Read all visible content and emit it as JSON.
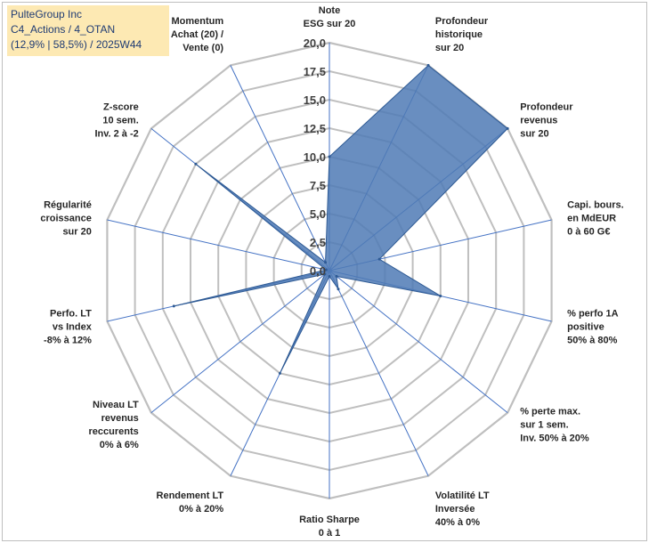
{
  "title_box": {
    "line1": "PulteGroup Inc",
    "line2": "C4_Actions / 4_OTAN",
    "line3": "(12,9% | 58,5%) / 2025W44"
  },
  "chart_data": {
    "type": "radar",
    "title": "PulteGroup Inc",
    "rmin": 0,
    "rmax": 20,
    "ticks": [
      "0,0",
      "2,5",
      "5,0",
      "7,5",
      "10,0",
      "12,5",
      "15,0",
      "17,5",
      "20,0"
    ],
    "axes": [
      [
        "Note",
        "ESG sur 20"
      ],
      [
        "Profondeur",
        "historique",
        "sur 20"
      ],
      [
        "Profondeur",
        "revenus",
        "sur 20"
      ],
      [
        "Capi. bours.",
        "en MdEUR",
        "0 à 60 G€"
      ],
      [
        "% perfo 1A",
        "positive",
        "50% à 80%"
      ],
      [
        "% perte max.",
        "sur 1 sem.",
        "Inv. 50% à 20%"
      ],
      [
        "Volatilité LT",
        "Inversée",
        "40% à 0%"
      ],
      [
        "Ratio Sharpe",
        "0 à 1"
      ],
      [
        "Rendement LT",
        "0% à 20%"
      ],
      [
        "Niveau LT",
        "revenus",
        "reccurents",
        "0% à 6%"
      ],
      [
        "Perfo. LT",
        "vs Index",
        "-8% à 12%"
      ],
      [
        "Régularité",
        "croissance",
        "sur 20"
      ],
      [
        "Z-score",
        "10 sem.",
        "Inv. 2 à -2"
      ],
      [
        "Momentum",
        "Achat (20) /",
        "Vente (0)"
      ]
    ],
    "values": [
      10,
      20,
      20,
      4.5,
      10,
      0.8,
      1.8,
      0.5,
      10,
      0.5,
      14,
      0.3,
      15,
      0.8
    ],
    "colors": {
      "fill": "#4f7ab5",
      "stroke": "#2e5a94",
      "grid": "#bfbfbf",
      "spoke": "#4472c4"
    },
    "grid": true,
    "legend": "none"
  }
}
